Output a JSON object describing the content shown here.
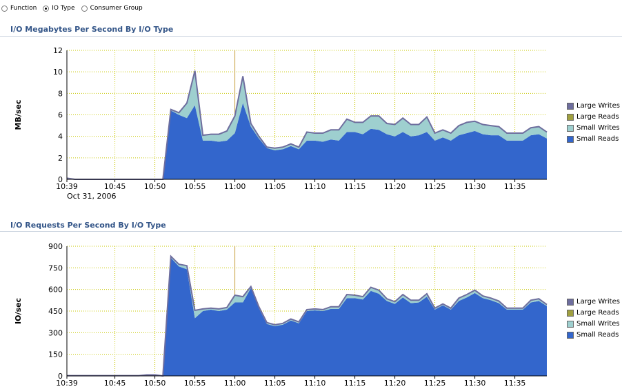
{
  "radio_options": [
    {
      "label": "Function",
      "selected": false
    },
    {
      "label": "IO Type",
      "selected": true
    },
    {
      "label": "Consumer Group",
      "selected": false
    }
  ],
  "colors": {
    "large_writes": "#6e6e9e",
    "large_reads": "#a0a040",
    "small_writes": "#9ecfcf",
    "small_reads": "#3366cc",
    "grid": "#c8c800",
    "title": "#335588"
  },
  "chart_data": [
    {
      "type": "area",
      "title": "I/O Megabytes Per Second By I/O Type",
      "ylabel": "MB/sec",
      "ylim": [
        0,
        12
      ],
      "yticks": [
        "0",
        "2",
        "4",
        "6",
        "8",
        "10",
        "12"
      ],
      "xticks": [
        "10:39",
        "10:45",
        "10:50",
        "10:55",
        "11:00",
        "11:05",
        "11:10",
        "11:15",
        "11:20",
        "11:25",
        "11:30",
        "11:35"
      ],
      "date_label": "Oct 31, 2006",
      "stacked": true,
      "x": [
        "10:39",
        "10:40",
        "10:41",
        "10:42",
        "10:43",
        "10:44",
        "10:45",
        "10:46",
        "10:47",
        "10:48",
        "10:49",
        "10:50",
        "10:51",
        "10:52",
        "10:53",
        "10:54",
        "10:55",
        "10:56",
        "10:57",
        "10:58",
        "10:59",
        "11:00",
        "11:01",
        "11:02",
        "11:03",
        "11:04",
        "11:05",
        "11:06",
        "11:07",
        "11:08",
        "11:09",
        "11:10",
        "11:11",
        "11:12",
        "11:13",
        "11:14",
        "11:15",
        "11:16",
        "11:17",
        "11:18",
        "11:19",
        "11:20",
        "11:21",
        "11:22",
        "11:23",
        "11:24",
        "11:25",
        "11:26",
        "11:27",
        "11:28",
        "11:29",
        "11:30",
        "11:31",
        "11:32",
        "11:33",
        "11:34",
        "11:35",
        "11:36",
        "11:37",
        "11:38",
        "11:39"
      ],
      "series": [
        {
          "name": "Small Reads",
          "values": [
            0.1,
            0,
            0,
            0,
            0,
            0,
            0,
            0,
            0,
            0,
            0,
            0,
            0,
            6.4,
            6.0,
            5.7,
            6.9,
            3.6,
            3.6,
            3.5,
            3.6,
            4.3,
            7.1,
            4.9,
            3.8,
            2.9,
            2.7,
            2.8,
            3.1,
            2.8,
            3.6,
            3.6,
            3.5,
            3.7,
            3.6,
            4.4,
            4.4,
            4.2,
            4.7,
            4.6,
            4.2,
            4.0,
            4.4,
            4.0,
            4.1,
            4.4,
            3.6,
            3.9,
            3.6,
            4.1,
            4.3,
            4.5,
            4.2,
            4.1,
            4.1,
            3.6,
            3.6,
            3.6,
            4.1,
            4.2,
            3.8
          ]
        },
        {
          "name": "Small Writes",
          "values": [
            0,
            0,
            0,
            0,
            0,
            0,
            0,
            0,
            0,
            0,
            0,
            0,
            0,
            0.1,
            0.2,
            1.4,
            3.2,
            0.5,
            0.6,
            0.7,
            0.9,
            1.6,
            2.5,
            0.3,
            0.2,
            0.1,
            0.2,
            0.2,
            0.2,
            0.2,
            0.8,
            0.7,
            0.8,
            0.9,
            1.0,
            1.2,
            0.9,
            1.1,
            1.2,
            1.3,
            1.0,
            1.1,
            1.3,
            1.1,
            1.0,
            1.4,
            0.7,
            0.7,
            0.7,
            0.9,
            1.0,
            0.9,
            0.9,
            0.9,
            0.8,
            0.7,
            0.7,
            0.7,
            0.7,
            0.7,
            0.6
          ]
        },
        {
          "name": "Large Reads",
          "values": [
            0,
            0,
            0,
            0,
            0,
            0,
            0,
            0,
            0,
            0,
            0,
            0,
            0,
            0,
            0,
            0,
            0,
            0,
            0,
            0,
            0,
            0,
            0,
            0,
            0,
            0,
            0,
            0,
            0,
            0,
            0,
            0,
            0,
            0,
            0,
            0,
            0,
            0,
            0,
            0,
            0,
            0,
            0,
            0,
            0,
            0,
            0,
            0,
            0,
            0,
            0,
            0,
            0,
            0,
            0,
            0,
            0,
            0,
            0,
            0,
            0
          ]
        },
        {
          "name": "Large Writes",
          "values": [
            0,
            0,
            0,
            0,
            0,
            0,
            0,
            0,
            0,
            0,
            0,
            0,
            0,
            0,
            0,
            0,
            0,
            0,
            0,
            0,
            0,
            0,
            0,
            0,
            0,
            0,
            0,
            0,
            0,
            0,
            0,
            0,
            0,
            0,
            0,
            0,
            0,
            0,
            0,
            0,
            0,
            0,
            0,
            0,
            0,
            0,
            0,
            0,
            0,
            0,
            0,
            0,
            0,
            0,
            0,
            0,
            0,
            0,
            0,
            0,
            0
          ]
        }
      ]
    },
    {
      "type": "area",
      "title": "I/O Requests Per Second By I/O Type",
      "ylabel": "IO/sec",
      "ylim": [
        0,
        900
      ],
      "yticks": [
        "0",
        "150",
        "300",
        "450",
        "600",
        "750",
        "900"
      ],
      "xticks": [
        "10:39",
        "10:45",
        "10:50",
        "10:55",
        "11:00",
        "11:05",
        "11:10",
        "11:15",
        "11:20",
        "11:25",
        "11:30",
        "11:35"
      ],
      "stacked": true,
      "x": [
        "10:39",
        "10:40",
        "10:41",
        "10:42",
        "10:43",
        "10:44",
        "10:45",
        "10:46",
        "10:47",
        "10:48",
        "10:49",
        "10:50",
        "10:51",
        "10:52",
        "10:53",
        "10:54",
        "10:55",
        "10:56",
        "10:57",
        "10:58",
        "10:59",
        "11:00",
        "11:01",
        "11:02",
        "11:03",
        "11:04",
        "11:05",
        "11:06",
        "11:07",
        "11:08",
        "11:09",
        "11:10",
        "11:11",
        "11:12",
        "11:13",
        "11:14",
        "11:15",
        "11:16",
        "11:17",
        "11:18",
        "11:19",
        "11:20",
        "11:21",
        "11:22",
        "11:23",
        "11:24",
        "11:25",
        "11:26",
        "11:27",
        "11:28",
        "11:29",
        "11:30",
        "11:31",
        "11:32",
        "11:33",
        "11:34",
        "11:35",
        "11:36",
        "11:37",
        "11:38",
        "11:39"
      ],
      "series": [
        {
          "name": "Small Reads",
          "values": [
            2,
            2,
            2,
            2,
            2,
            2,
            2,
            2,
            2,
            2,
            2,
            2,
            0,
            820,
            760,
            740,
            400,
            450,
            460,
            450,
            460,
            510,
            510,
            610,
            470,
            360,
            345,
            355,
            385,
            365,
            450,
            455,
            450,
            465,
            465,
            540,
            540,
            530,
            590,
            570,
            520,
            500,
            545,
            505,
            510,
            550,
            460,
            490,
            460,
            520,
            545,
            575,
            540,
            525,
            505,
            460,
            460,
            460,
            510,
            520,
            485
          ]
        },
        {
          "name": "Small Writes",
          "values": [
            0,
            0,
            0,
            0,
            0,
            0,
            0,
            0,
            0,
            0,
            5,
            5,
            0,
            10,
            15,
            25,
            55,
            15,
            10,
            15,
            15,
            50,
            40,
            10,
            10,
            10,
            10,
            10,
            10,
            10,
            10,
            10,
            10,
            15,
            15,
            25,
            20,
            20,
            25,
            25,
            15,
            15,
            20,
            20,
            15,
            20,
            10,
            10,
            10,
            20,
            20,
            20,
            15,
            15,
            15,
            10,
            10,
            10,
            15,
            15,
            10
          ]
        },
        {
          "name": "Large Reads",
          "values": [
            0,
            0,
            0,
            0,
            0,
            0,
            0,
            0,
            0,
            0,
            0,
            0,
            0,
            0,
            0,
            0,
            0,
            0,
            0,
            0,
            0,
            0,
            0,
            0,
            0,
            0,
            0,
            0,
            0,
            0,
            0,
            0,
            0,
            0,
            0,
            0,
            0,
            0,
            0,
            0,
            0,
            0,
            0,
            0,
            0,
            0,
            0,
            0,
            0,
            0,
            0,
            0,
            0,
            0,
            0,
            0,
            0,
            0,
            0,
            0,
            0
          ]
        },
        {
          "name": "Large Writes",
          "values": [
            0,
            0,
            0,
            0,
            0,
            0,
            0,
            0,
            0,
            0,
            0,
            0,
            0,
            0,
            0,
            0,
            0,
            0,
            0,
            0,
            0,
            0,
            0,
            0,
            0,
            0,
            0,
            0,
            0,
            0,
            0,
            0,
            0,
            0,
            0,
            0,
            0,
            0,
            0,
            0,
            0,
            0,
            0,
            0,
            0,
            0,
            0,
            0,
            0,
            0,
            0,
            0,
            0,
            0,
            0,
            0,
            0,
            0,
            0,
            0,
            0
          ]
        }
      ]
    }
  ],
  "legend": [
    "Large Writes",
    "Large Reads",
    "Small Writes",
    "Small Reads"
  ]
}
